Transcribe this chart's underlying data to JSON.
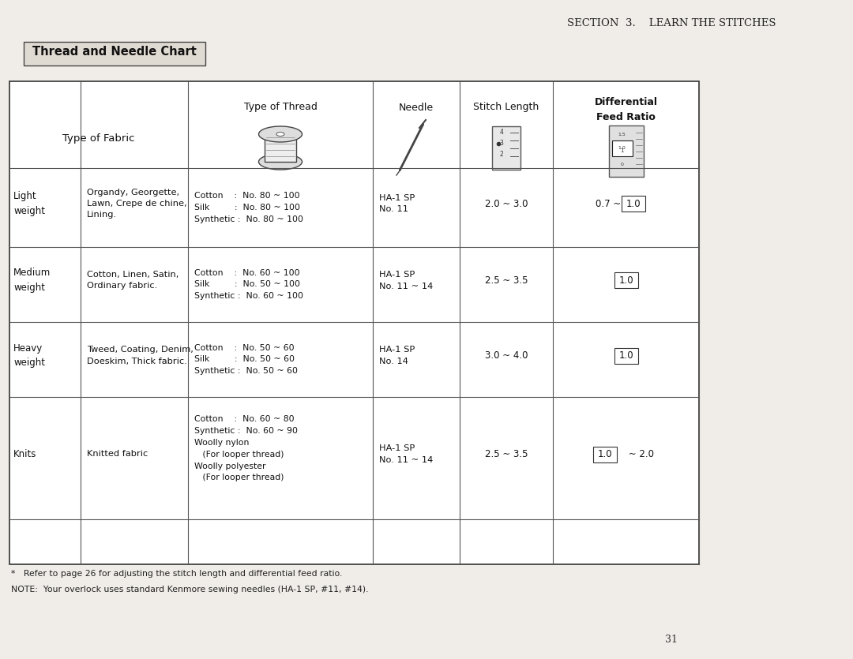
{
  "page_header": "SECTION  3.    LEARN THE STITCHES",
  "section_title": "Thread and Needle Chart",
  "bg_color": "#f0ede8",
  "table_bg": "#ffffff",
  "col_headers": [
    "Type of Thread",
    "Needle",
    "Stitch Length",
    "Differential\nFeed Ratio"
  ],
  "row_label_col1": "Type of Fabric",
  "rows": [
    {
      "weight": "Light\nweight",
      "fabric": "Organdy, Georgette,\nLawn, Crepe de chine,\nLining.",
      "thread": "Cotton    :  No. 80 ~ 100\nSilk         :  No. 80 ~ 100\nSynthetic :  No. 80 ~ 100",
      "needle": "HA-1 SP\nNo. 11",
      "stitch": "2.0 ~ 3.0",
      "feed": "0.7 ~ [1.0]"
    },
    {
      "weight": "Medium\nweight",
      "fabric": "Cotton, Linen, Satin,\nOrdinary fabric.",
      "thread": "Cotton    :  No. 60 ~ 100\nSilk         :  No. 50 ~ 100\nSynthetic :  No. 60 ~ 100",
      "needle": "HA-1 SP\nNo. 11 ~ 14",
      "stitch": "2.5 ~ 3.5",
      "feed": "[1.0]"
    },
    {
      "weight": "Heavy\nweight",
      "fabric": "Tweed, Coating, Denim,\nDoeskim, Thick fabric.",
      "thread": "Cotton    :  No. 50 ~ 60\nSilk         :  No. 50 ~ 60\nSynthetic :  No. 50 ~ 60",
      "needle": "HA-1 SP\nNo. 14",
      "stitch": "3.0 ~ 4.0",
      "feed": "[1.0]"
    },
    {
      "weight": "Knits",
      "fabric": "Knitted fabric",
      "thread": "Cotton    :  No. 60 ~ 80\nSynthetic :  No. 60 ~ 90\nWoolly nylon\n   (For looper thread)\nWoolly polyester\n   (For looper thread)",
      "needle": "HA-1 SP\nNo. 11 ~ 14",
      "stitch": "2.5 ~ 3.5",
      "feed": "[1.0] ~ 2.0"
    }
  ],
  "footnote1": "*   Refer to page 26 for adjusting the stitch length and differential feed ratio.",
  "footnote2": "NOTE:  Your overlock uses standard Kenmore sewing needles (HA-1 SP, #11, #14).",
  "page_number": "31"
}
